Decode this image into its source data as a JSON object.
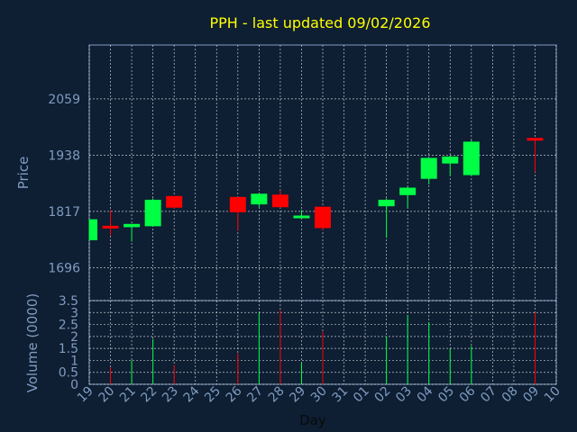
{
  "chart_data": {
    "type": "candlestick",
    "title": "PPH - last updated 09/02/2026",
    "xlabel": "Day",
    "x_ticks": [
      "19",
      "20",
      "21",
      "22",
      "23",
      "24",
      "25",
      "26",
      "27",
      "28",
      "29",
      "30",
      "31",
      "01",
      "02",
      "03",
      "04",
      "05",
      "06",
      "07",
      "08",
      "09",
      "10"
    ],
    "price_panel": {
      "ylabel": "Price",
      "y_ticks": [
        1696,
        1817,
        1938,
        2059
      ],
      "ylim": [
        1625,
        2175
      ],
      "grid": true,
      "candles": [
        {
          "day": "19",
          "open": 1755,
          "high": 1800,
          "low": 1755,
          "close": 1800
        },
        {
          "day": "20",
          "open": 1786,
          "high": 1820,
          "low": 1765,
          "close": 1783
        },
        {
          "day": "21",
          "open": 1783,
          "high": 1790,
          "low": 1752,
          "close": 1790
        },
        {
          "day": "22",
          "open": 1785,
          "high": 1845,
          "low": 1785,
          "close": 1842
        },
        {
          "day": "23",
          "open": 1850,
          "high": 1850,
          "low": 1823,
          "close": 1825
        },
        {
          "day": "26",
          "open": 1848,
          "high": 1848,
          "low": 1775,
          "close": 1815
        },
        {
          "day": "27",
          "open": 1832,
          "high": 1855,
          "low": 1826,
          "close": 1855
        },
        {
          "day": "28",
          "open": 1853,
          "high": 1862,
          "low": 1825,
          "close": 1826
        },
        {
          "day": "29",
          "open": 1803,
          "high": 1820,
          "low": 1803,
          "close": 1808
        },
        {
          "day": "30",
          "open": 1827,
          "high": 1827,
          "low": 1777,
          "close": 1781
        },
        {
          "day": "02",
          "open": 1828,
          "high": 1845,
          "low": 1760,
          "close": 1842
        },
        {
          "day": "03",
          "open": 1852,
          "high": 1870,
          "low": 1825,
          "close": 1868
        },
        {
          "day": "04",
          "open": 1887,
          "high": 1932,
          "low": 1875,
          "close": 1932
        },
        {
          "day": "05",
          "open": 1920,
          "high": 1937,
          "low": 1893,
          "close": 1935
        },
        {
          "day": "06",
          "open": 1895,
          "high": 1970,
          "low": 1895,
          "close": 1967
        },
        {
          "day": "09",
          "open": 1975,
          "high": 1975,
          "low": 1902,
          "close": 1972
        }
      ]
    },
    "volume_panel": {
      "ylabel": "Volume (0000)",
      "y_ticks": [
        "0",
        "0.5",
        "1",
        "1.5",
        "2",
        "2.5",
        "3",
        "3.5"
      ],
      "ylim": [
        0,
        3.5
      ],
      "bars": [
        {
          "day": "20",
          "value": 0.7,
          "color": "red"
        },
        {
          "day": "21",
          "value": 1.0,
          "color": "green"
        },
        {
          "day": "22",
          "value": 1.9,
          "color": "green"
        },
        {
          "day": "23",
          "value": 0.8,
          "color": "red"
        },
        {
          "day": "26",
          "value": 1.3,
          "color": "red"
        },
        {
          "day": "27",
          "value": 3.0,
          "color": "green"
        },
        {
          "day": "28",
          "value": 3.1,
          "color": "red"
        },
        {
          "day": "29",
          "value": 0.9,
          "color": "green"
        },
        {
          "day": "30",
          "value": 2.2,
          "color": "red"
        },
        {
          "day": "02",
          "value": 2.0,
          "color": "green"
        },
        {
          "day": "03",
          "value": 2.9,
          "color": "green"
        },
        {
          "day": "04",
          "value": 2.6,
          "color": "green"
        },
        {
          "day": "05",
          "value": 1.5,
          "color": "green"
        },
        {
          "day": "06",
          "value": 1.6,
          "color": "green"
        },
        {
          "day": "09",
          "value": 3.0,
          "color": "red"
        }
      ]
    },
    "colors": {
      "background": "#0e1e33",
      "axis_text": "#7f9cbf",
      "title": "#ffff00",
      "up": "#00ff44",
      "down": "#ff0000",
      "grid": "#ffffff"
    }
  }
}
